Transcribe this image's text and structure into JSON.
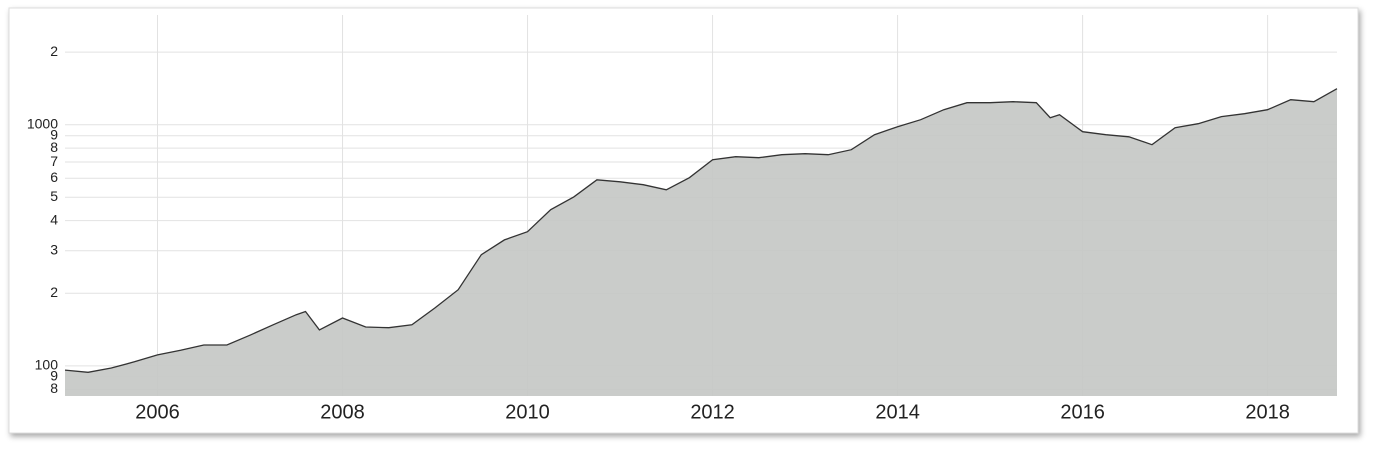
{
  "chart_data": {
    "type": "area",
    "log_y": true,
    "grid": true,
    "x": [
      2005.0,
      2005.25,
      2005.5,
      2005.75,
      2006.0,
      2006.25,
      2006.5,
      2006.75,
      2007.0,
      2007.25,
      2007.5,
      2007.6,
      2007.75,
      2008.0,
      2008.25,
      2008.5,
      2008.75,
      2009.0,
      2009.25,
      2009.5,
      2009.75,
      2010.0,
      2010.25,
      2010.5,
      2010.75,
      2011.0,
      2011.25,
      2011.5,
      2011.75,
      2012.0,
      2012.25,
      2012.5,
      2012.75,
      2013.0,
      2013.25,
      2013.5,
      2013.75,
      2014.0,
      2014.25,
      2014.5,
      2014.75,
      2015.0,
      2015.25,
      2015.5,
      2015.65,
      2015.75,
      2016.0,
      2016.25,
      2016.5,
      2016.75,
      2017.0,
      2017.25,
      2017.5,
      2017.75,
      2018.0,
      2018.25,
      2018.5,
      2018.75
    ],
    "series": [
      {
        "color": "#c5c8c6",
        "line_color": "#333333",
        "values": [
          96,
          94,
          98,
          104,
          111,
          116,
          122,
          122,
          134,
          148,
          163,
          168,
          141,
          158,
          145,
          144,
          148,
          174,
          207,
          289,
          333,
          360,
          444,
          502,
          591,
          580,
          564,
          537,
          603,
          716,
          737,
          730,
          751,
          758,
          751,
          788,
          909,
          981,
          1049,
          1154,
          1234,
          1234,
          1245,
          1234,
          1069,
          1100,
          935,
          909,
          891,
          826,
          972,
          1010,
          1080,
          1111,
          1154,
          1269,
          1245,
          1410
        ]
      }
    ],
    "xlim": [
      2005,
      2018.75
    ],
    "xticks": [
      2006,
      2008,
      2010,
      2012,
      2014,
      2016,
      2018
    ],
    "ylim": [
      75,
      2850
    ],
    "yticks": [
      {
        "value": 80,
        "label": "8"
      },
      {
        "value": 90,
        "label": "9"
      },
      100,
      {
        "value": 200,
        "label": "2"
      },
      {
        "value": 300,
        "label": "3"
      },
      {
        "value": 400,
        "label": "4"
      },
      {
        "value": 500,
        "label": "5"
      },
      {
        "value": 600,
        "label": "6"
      },
      {
        "value": 700,
        "label": "7"
      },
      {
        "value": 800,
        "label": "8"
      },
      {
        "value": 900,
        "label": "9"
      },
      1000,
      {
        "value": 2000,
        "label": "2"
      }
    ]
  }
}
